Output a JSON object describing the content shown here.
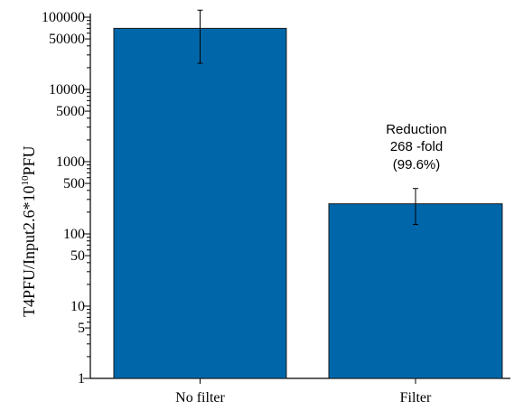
{
  "chart_data": {
    "type": "bar",
    "categories": [
      "No filter",
      "Filter"
    ],
    "values": [
      70000,
      261
    ],
    "error_low": [
      23000,
      135
    ],
    "error_high": [
      125000,
      425
    ],
    "yscale": "log",
    "ylim": [
      1,
      100000
    ],
    "yticks_labeled": [
      {
        "value": 100000,
        "label": "100000"
      },
      {
        "value": 50000,
        "label": "50000"
      },
      {
        "value": 10000,
        "label": "10000"
      },
      {
        "value": 5000,
        "label": "5000"
      },
      {
        "value": 1000,
        "label": "1000"
      },
      {
        "value": 500,
        "label": "500"
      },
      {
        "value": 100,
        "label": "100"
      },
      {
        "value": 50,
        "label": "50"
      },
      {
        "value": 10,
        "label": "10"
      },
      {
        "value": 5,
        "label": "5"
      },
      {
        "value": 1,
        "label": "1"
      }
    ],
    "ylabel": {
      "main": "T4PFU/Input2.6*10",
      "superscript": "10",
      "after": "PFU"
    },
    "annotation": [
      "Reduction",
      "268 -fold",
      "(99.6%)"
    ],
    "colors": {
      "bar": "#0066AA",
      "axis": "#000000"
    },
    "grid": false
  }
}
